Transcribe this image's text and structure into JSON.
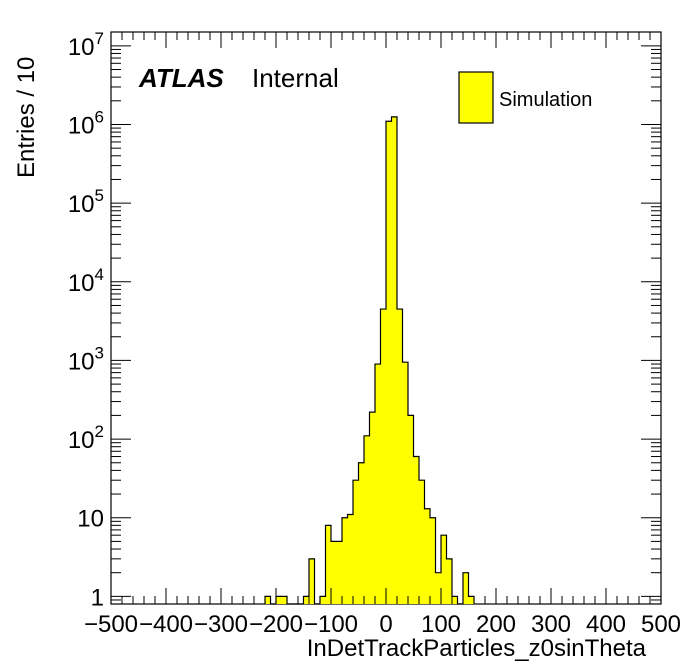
{
  "chart_data": {
    "type": "bar",
    "title": "",
    "xlabel": "InDetTrackParticles_z0sinTheta",
    "ylabel": "Entries / 10",
    "xlim": [
      -500,
      500
    ],
    "ylim": [
      0.8,
      15000000
    ],
    "y_scale": "log",
    "bin_width": 10,
    "x_ticks": [
      -500,
      -400,
      -300,
      -200,
      -100,
      0,
      100,
      200,
      300,
      400,
      500
    ],
    "x_tick_labels": [
      "−500",
      "−400",
      "−300",
      "−200",
      "−100",
      "0",
      "100",
      "200",
      "300",
      "400",
      "500"
    ],
    "y_ticks": [
      {
        "value": 1,
        "base": "1",
        "exp": ""
      },
      {
        "value": 10,
        "base": "10",
        "exp": ""
      },
      {
        "value": 100,
        "base": "10",
        "exp": "2"
      },
      {
        "value": 1000,
        "base": "10",
        "exp": "3"
      },
      {
        "value": 10000,
        "base": "10",
        "exp": "4"
      },
      {
        "value": 100000,
        "base": "10",
        "exp": "5"
      },
      {
        "value": 1000000,
        "base": "10",
        "exp": "6"
      },
      {
        "value": 10000000,
        "base": "10",
        "exp": "7"
      }
    ],
    "annotations": {
      "experiment": "ATLAS",
      "status": "Internal"
    },
    "legend": {
      "position": "top-right",
      "entries": [
        {
          "label": "Simulation",
          "color": "#ffff00"
        }
      ]
    },
    "fill_color": "#ffff00",
    "line_color": "#000000",
    "series": [
      {
        "name": "Simulation",
        "bins": [
          {
            "x": -220,
            "y": 1
          },
          {
            "x": -210,
            "y": 0
          },
          {
            "x": -200,
            "y": 1
          },
          {
            "x": -190,
            "y": 1
          },
          {
            "x": -180,
            "y": 0
          },
          {
            "x": -170,
            "y": 0
          },
          {
            "x": -160,
            "y": 0
          },
          {
            "x": -150,
            "y": 1
          },
          {
            "x": -140,
            "y": 3
          },
          {
            "x": -130,
            "y": 0
          },
          {
            "x": -120,
            "y": 1
          },
          {
            "x": -110,
            "y": 8
          },
          {
            "x": -100,
            "y": 5
          },
          {
            "x": -90,
            "y": 5
          },
          {
            "x": -80,
            "y": 10
          },
          {
            "x": -70,
            "y": 11
          },
          {
            "x": -60,
            "y": 30
          },
          {
            "x": -50,
            "y": 50
          },
          {
            "x": -40,
            "y": 110
          },
          {
            "x": -30,
            "y": 220
          },
          {
            "x": -20,
            "y": 900
          },
          {
            "x": -10,
            "y": 4500
          },
          {
            "x": 0,
            "y": 1100000
          },
          {
            "x": 10,
            "y": 1250000
          },
          {
            "x": 20,
            "y": 4500
          },
          {
            "x": 30,
            "y": 950
          },
          {
            "x": 40,
            "y": 200
          },
          {
            "x": 50,
            "y": 60
          },
          {
            "x": 60,
            "y": 30
          },
          {
            "x": 70,
            "y": 13
          },
          {
            "x": 80,
            "y": 10
          },
          {
            "x": 90,
            "y": 2
          },
          {
            "x": 100,
            "y": 6
          },
          {
            "x": 110,
            "y": 3
          },
          {
            "x": 120,
            "y": 1
          },
          {
            "x": 130,
            "y": 0
          },
          {
            "x": 140,
            "y": 2
          },
          {
            "x": 150,
            "y": 1
          }
        ]
      }
    ]
  }
}
